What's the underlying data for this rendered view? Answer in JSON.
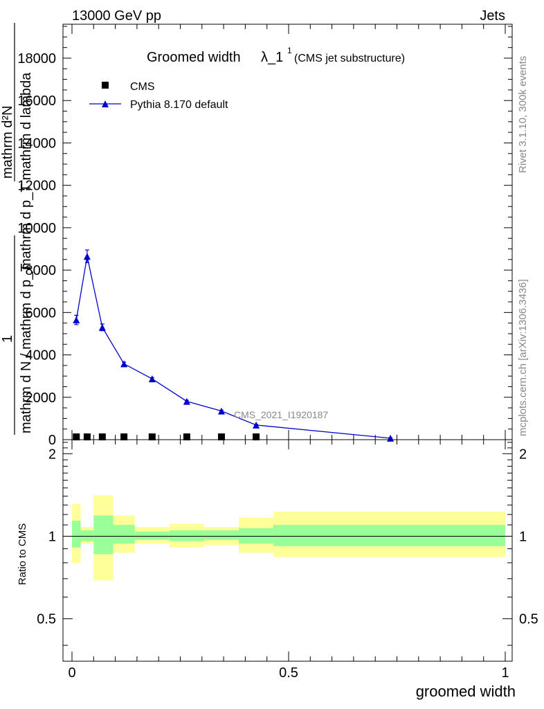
{
  "header": {
    "energy_label": "13000 GeV pp",
    "category_label": "Jets"
  },
  "side_labels": {
    "rivet": "Rivet 3.1.10,  300k events",
    "source": "mcplots.cern.ch [arXiv:1306.3436]"
  },
  "chart_data": [
    {
      "type": "line",
      "title_main": "Groomed width",
      "title_lambda": "λ_1",
      "title_sup": "1",
      "title_sub": "(CMS jet substructure)",
      "analysis_tag": "CMS_2021_I1920187",
      "ylabel_line1": "mathrm d²N",
      "ylabel_line2": "mathrm d p_T mathrm d lambda",
      "ylabel_line3": "1",
      "ylabel_line4": "mathrm d N / mathrm d p_T",
      "xlim": [
        0,
        1
      ],
      "ylim": [
        0,
        19600
      ],
      "yticks": [
        0,
        2000,
        4000,
        6000,
        8000,
        10000,
        12000,
        14000,
        16000,
        18000
      ],
      "ytick_labels": [
        "0",
        "2000",
        "4000",
        "6000",
        "8000",
        "10000",
        "12000",
        "14000",
        "16000",
        "18000"
      ],
      "legend": [
        {
          "label": "CMS",
          "marker": "square",
          "color": "#000000"
        },
        {
          "label": "Pythia 8.170 default",
          "marker": "triangle",
          "color": "#0000cc"
        }
      ],
      "series": [
        {
          "name": "CMS",
          "x": [
            0.01,
            0.035,
            0.07,
            0.12,
            0.185,
            0.265,
            0.345,
            0.425
          ],
          "y": [
            10,
            10,
            10,
            10,
            10,
            10,
            10,
            10
          ]
        },
        {
          "name": "Pythia 8.170 default",
          "x": [
            0.01,
            0.035,
            0.07,
            0.12,
            0.185,
            0.265,
            0.345,
            0.425,
            0.735
          ],
          "y": [
            5650,
            8650,
            5300,
            3580,
            2870,
            1810,
            1350,
            690,
            70
          ],
          "yerr": [
            220,
            300,
            160,
            80,
            60,
            50,
            40,
            30,
            20
          ]
        }
      ]
    },
    {
      "type": "area",
      "ylabel": "Ratio to CMS",
      "xlabel": "groomed width",
      "xlim": [
        0,
        1
      ],
      "ylim": [
        0.35,
        2.25
      ],
      "yticks": [
        0.5,
        1,
        2
      ],
      "ytick_labels": [
        "0.5",
        "1",
        "2"
      ],
      "xticks": [
        0,
        0.5,
        1
      ],
      "xtick_labels": [
        "0",
        "0.5",
        "1"
      ],
      "band_colors": {
        "inner": "#99ff99",
        "outer": "#ffff99"
      },
      "bins": [
        {
          "x0": 0.0,
          "x1": 0.02,
          "in_lo": 0.91,
          "in_hi": 1.14,
          "out_lo": 0.8,
          "out_hi": 1.31
        },
        {
          "x0": 0.02,
          "x1": 0.05,
          "in_lo": 0.96,
          "in_hi": 1.05,
          "out_lo": 0.94,
          "out_hi": 1.08
        },
        {
          "x0": 0.05,
          "x1": 0.095,
          "in_lo": 0.86,
          "in_hi": 1.19,
          "out_lo": 0.69,
          "out_hi": 1.41
        },
        {
          "x0": 0.095,
          "x1": 0.145,
          "in_lo": 0.94,
          "in_hi": 1.1,
          "out_lo": 0.87,
          "out_hi": 1.19
        },
        {
          "x0": 0.145,
          "x1": 0.225,
          "in_lo": 0.97,
          "in_hi": 1.04,
          "out_lo": 0.94,
          "out_hi": 1.08
        },
        {
          "x0": 0.225,
          "x1": 0.305,
          "in_lo": 0.96,
          "in_hi": 1.05,
          "out_lo": 0.91,
          "out_hi": 1.11
        },
        {
          "x0": 0.305,
          "x1": 0.385,
          "in_lo": 0.97,
          "in_hi": 1.05,
          "out_lo": 0.93,
          "out_hi": 1.08
        },
        {
          "x0": 0.385,
          "x1": 0.465,
          "in_lo": 0.94,
          "in_hi": 1.07,
          "out_lo": 0.87,
          "out_hi": 1.17
        },
        {
          "x0": 0.465,
          "x1": 1.0,
          "in_lo": 0.92,
          "in_hi": 1.1,
          "out_lo": 0.84,
          "out_hi": 1.23
        }
      ]
    }
  ]
}
